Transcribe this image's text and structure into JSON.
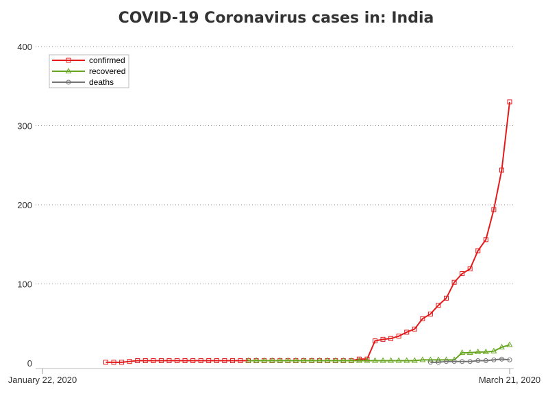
{
  "chart_data": {
    "type": "line",
    "title": "COVID-19 Coronavirus cases in: India",
    "x_start_label": "January 22, 2020",
    "x_end_label": "March 21, 2020",
    "y_ticks": [
      "0",
      "100",
      "200",
      "300",
      "400"
    ],
    "ylim": [
      0,
      400
    ],
    "grid": "horizontal-dotted",
    "legend_position": "top-left",
    "series": [
      {
        "name": "confirmed",
        "color": "#e31a1c",
        "marker": "square",
        "points": [
          [
            "2020-01-30",
            1
          ],
          [
            "2020-01-31",
            1
          ],
          [
            "2020-02-01",
            1
          ],
          [
            "2020-02-02",
            2
          ],
          [
            "2020-02-03",
            3
          ],
          [
            "2020-02-04",
            3
          ],
          [
            "2020-02-05",
            3
          ],
          [
            "2020-02-06",
            3
          ],
          [
            "2020-02-07",
            3
          ],
          [
            "2020-02-08",
            3
          ],
          [
            "2020-02-09",
            3
          ],
          [
            "2020-02-10",
            3
          ],
          [
            "2020-02-11",
            3
          ],
          [
            "2020-02-12",
            3
          ],
          [
            "2020-02-13",
            3
          ],
          [
            "2020-02-14",
            3
          ],
          [
            "2020-02-15",
            3
          ],
          [
            "2020-02-16",
            3
          ],
          [
            "2020-02-17",
            3
          ],
          [
            "2020-02-18",
            3
          ],
          [
            "2020-02-19",
            3
          ],
          [
            "2020-02-20",
            3
          ],
          [
            "2020-02-21",
            3
          ],
          [
            "2020-02-22",
            3
          ],
          [
            "2020-02-23",
            3
          ],
          [
            "2020-02-24",
            3
          ],
          [
            "2020-02-25",
            3
          ],
          [
            "2020-02-26",
            3
          ],
          [
            "2020-02-27",
            3
          ],
          [
            "2020-02-28",
            3
          ],
          [
            "2020-02-29",
            3
          ],
          [
            "2020-03-01",
            3
          ],
          [
            "2020-03-02",
            5
          ],
          [
            "2020-03-03",
            5
          ],
          [
            "2020-03-04",
            28
          ],
          [
            "2020-03-05",
            30
          ],
          [
            "2020-03-06",
            31
          ],
          [
            "2020-03-07",
            34
          ],
          [
            "2020-03-08",
            39
          ],
          [
            "2020-03-09",
            43
          ],
          [
            "2020-03-10",
            56
          ],
          [
            "2020-03-11",
            62
          ],
          [
            "2020-03-12",
            73
          ],
          [
            "2020-03-13",
            82
          ],
          [
            "2020-03-14",
            102
          ],
          [
            "2020-03-15",
            113
          ],
          [
            "2020-03-16",
            119
          ],
          [
            "2020-03-17",
            142
          ],
          [
            "2020-03-18",
            156
          ],
          [
            "2020-03-19",
            194
          ],
          [
            "2020-03-20",
            244
          ],
          [
            "2020-03-21",
            330
          ]
        ]
      },
      {
        "name": "recovered",
        "color": "#66a61e",
        "marker": "triangle",
        "points": [
          [
            "2020-02-17",
            3
          ],
          [
            "2020-02-18",
            3
          ],
          [
            "2020-02-19",
            3
          ],
          [
            "2020-02-20",
            3
          ],
          [
            "2020-02-21",
            3
          ],
          [
            "2020-02-22",
            3
          ],
          [
            "2020-02-23",
            3
          ],
          [
            "2020-02-24",
            3
          ],
          [
            "2020-02-25",
            3
          ],
          [
            "2020-02-26",
            3
          ],
          [
            "2020-02-27",
            3
          ],
          [
            "2020-02-28",
            3
          ],
          [
            "2020-02-29",
            3
          ],
          [
            "2020-03-01",
            3
          ],
          [
            "2020-03-02",
            3
          ],
          [
            "2020-03-03",
            3
          ],
          [
            "2020-03-04",
            3
          ],
          [
            "2020-03-05",
            3
          ],
          [
            "2020-03-06",
            3
          ],
          [
            "2020-03-07",
            3
          ],
          [
            "2020-03-08",
            3
          ],
          [
            "2020-03-09",
            3
          ],
          [
            "2020-03-10",
            4
          ],
          [
            "2020-03-11",
            4
          ],
          [
            "2020-03-12",
            4
          ],
          [
            "2020-03-13",
            4
          ],
          [
            "2020-03-14",
            4
          ],
          [
            "2020-03-15",
            13
          ],
          [
            "2020-03-16",
            13
          ],
          [
            "2020-03-17",
            14
          ],
          [
            "2020-03-18",
            14
          ],
          [
            "2020-03-19",
            15
          ],
          [
            "2020-03-20",
            20
          ],
          [
            "2020-03-21",
            23
          ]
        ]
      },
      {
        "name": "deaths",
        "color": "#737373",
        "marker": "circle",
        "points": [
          [
            "2020-03-11",
            1
          ],
          [
            "2020-03-12",
            1
          ],
          [
            "2020-03-13",
            2
          ],
          [
            "2020-03-14",
            2
          ],
          [
            "2020-03-15",
            2
          ],
          [
            "2020-03-16",
            2
          ],
          [
            "2020-03-17",
            3
          ],
          [
            "2020-03-18",
            3
          ],
          [
            "2020-03-19",
            4
          ],
          [
            "2020-03-20",
            5
          ],
          [
            "2020-03-21",
            4
          ]
        ]
      }
    ]
  }
}
